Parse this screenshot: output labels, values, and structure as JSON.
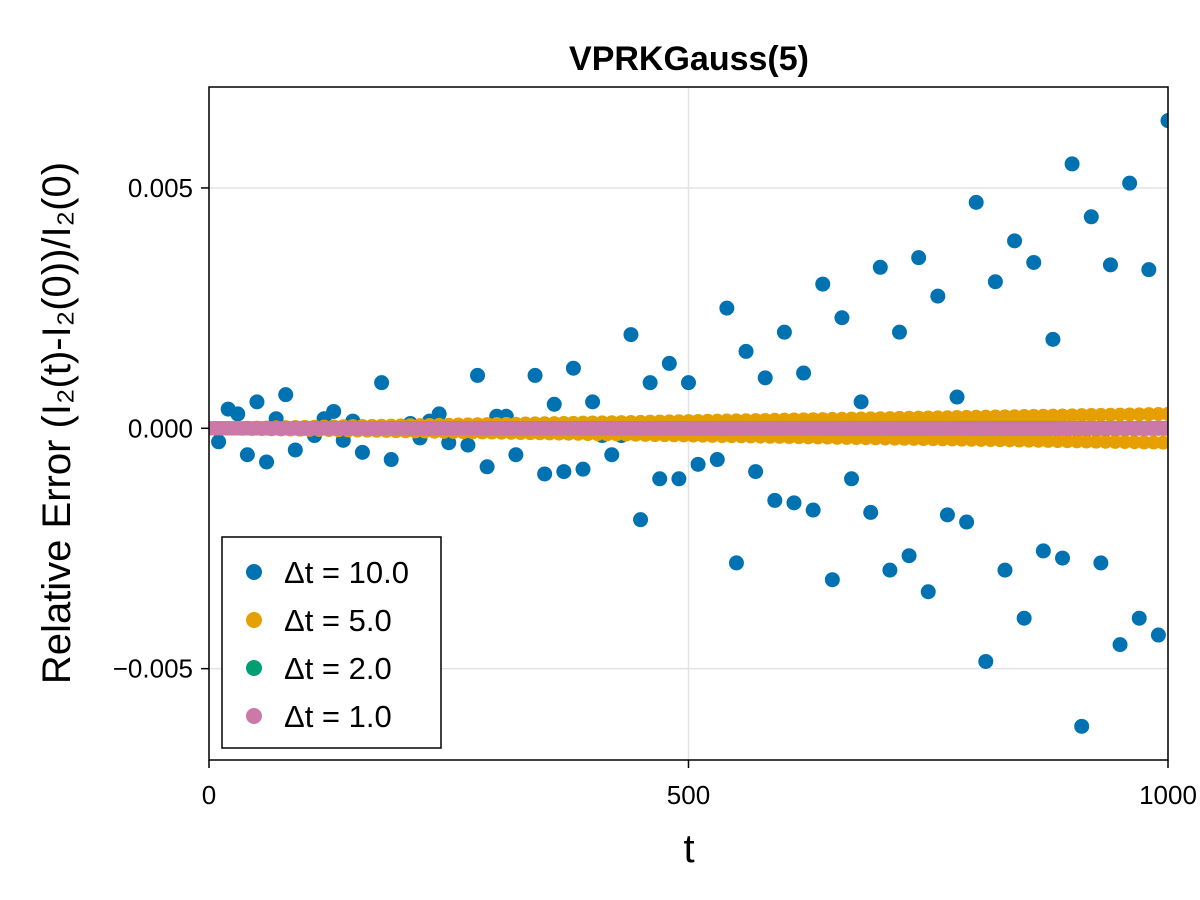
{
  "chart_data": {
    "type": "scatter",
    "title": "VPRKGauss(5)",
    "xlabel": "t",
    "ylabel": "Relative Error (I₂(t)-I₂(0))/I₂(0)",
    "xlim": [
      0,
      1000
    ],
    "ylim": [
      -0.0069,
      0.0071
    ],
    "xticks": [
      0,
      500,
      1000
    ],
    "xtick_labels": [
      "0",
      "500",
      "1000"
    ],
    "yticks": [
      0.005,
      0.0,
      -0.005
    ],
    "ytick_labels": [
      "0.005",
      "0.000",
      "−0.005"
    ],
    "grid": true,
    "legend_position": "bottom-left",
    "series": [
      {
        "name": "Δt = 10.0",
        "color": "#0072B2",
        "x": [
          10,
          20,
          30,
          40,
          50,
          60,
          70,
          80,
          90,
          100,
          110,
          120,
          130,
          140,
          150,
          160,
          170,
          180,
          190,
          200,
          210,
          220,
          230,
          240,
          250,
          260,
          270,
          280,
          290,
          300,
          310,
          320,
          330,
          340,
          350,
          360,
          370,
          380,
          390,
          400,
          410,
          420,
          430,
          440,
          450,
          460,
          470,
          480,
          490,
          500,
          510,
          520,
          530,
          540,
          550,
          560,
          570,
          580,
          590,
          600,
          610,
          620,
          630,
          640,
          650,
          660,
          670,
          680,
          690,
          700,
          710,
          720,
          730,
          740,
          750,
          760,
          770,
          780,
          790,
          800,
          810,
          820,
          830,
          840,
          850,
          860,
          870,
          880,
          890,
          900,
          910,
          920,
          930,
          940,
          950,
          960,
          970,
          980,
          990,
          1000
        ],
        "y": [
          -0.00028,
          0.0004,
          0.0003,
          -0.00055,
          0.00055,
          -0.0007,
          0.0002,
          0.0007,
          -0.00045,
          0.0,
          -0.00015,
          0.0002,
          0.00035,
          -0.00025,
          0.00015,
          -0.0005,
          0.0,
          0.00095,
          -0.00065,
          0.0,
          0.0001,
          -0.0002,
          0.00015,
          0.0003,
          -0.0003,
          0.0,
          -0.00035,
          0.0011,
          -0.0008,
          0.00025,
          0.00025,
          -0.00055,
          0.0,
          0.0011,
          -0.00095,
          0.0005,
          -0.0009,
          0.00125,
          -0.00085,
          0.00055,
          -0.00015,
          -0.00055,
          -0.00015,
          0.00195,
          -0.0019,
          0.00095,
          -0.00105,
          0.00135,
          -0.00105,
          0.00095,
          -0.00075,
          0.0001,
          -0.00065,
          0.0025,
          -0.0028,
          0.0016,
          -0.0009,
          0.00105,
          -0.0015,
          0.002,
          -0.00155,
          0.00115,
          -0.0017,
          0.003,
          -0.00315,
          0.0023,
          -0.00105,
          0.00055,
          -0.00175,
          0.00335,
          -0.00295,
          0.002,
          -0.00265,
          0.00355,
          -0.0034,
          0.00275,
          -0.0018,
          0.00065,
          -0.00195,
          0.0047,
          -0.00485,
          0.00305,
          -0.00295,
          0.0039,
          -0.00395,
          0.00345,
          -0.00255,
          0.00185,
          -0.0027,
          0.0055,
          -0.0062,
          0.0044,
          -0.0028,
          0.0034,
          -0.0045,
          0.0051,
          -0.00395,
          0.0033,
          -0.0043,
          0.0064
        ]
      },
      {
        "name": "Δt = 5.0",
        "color": "#E69F00",
        "x": [],
        "y": [],
        "generated": true,
        "dt": 5,
        "envelope_end": 0.0003
      },
      {
        "name": "Δt = 2.0",
        "color": "#009E73",
        "x": [],
        "y": [],
        "generated": true,
        "dt": 2,
        "envelope_end": 1e-05
      },
      {
        "name": "Δt = 1.0",
        "color": "#CC79A7",
        "x": [],
        "y": [],
        "generated": true,
        "dt": 1,
        "envelope_end": 5e-06
      }
    ]
  }
}
